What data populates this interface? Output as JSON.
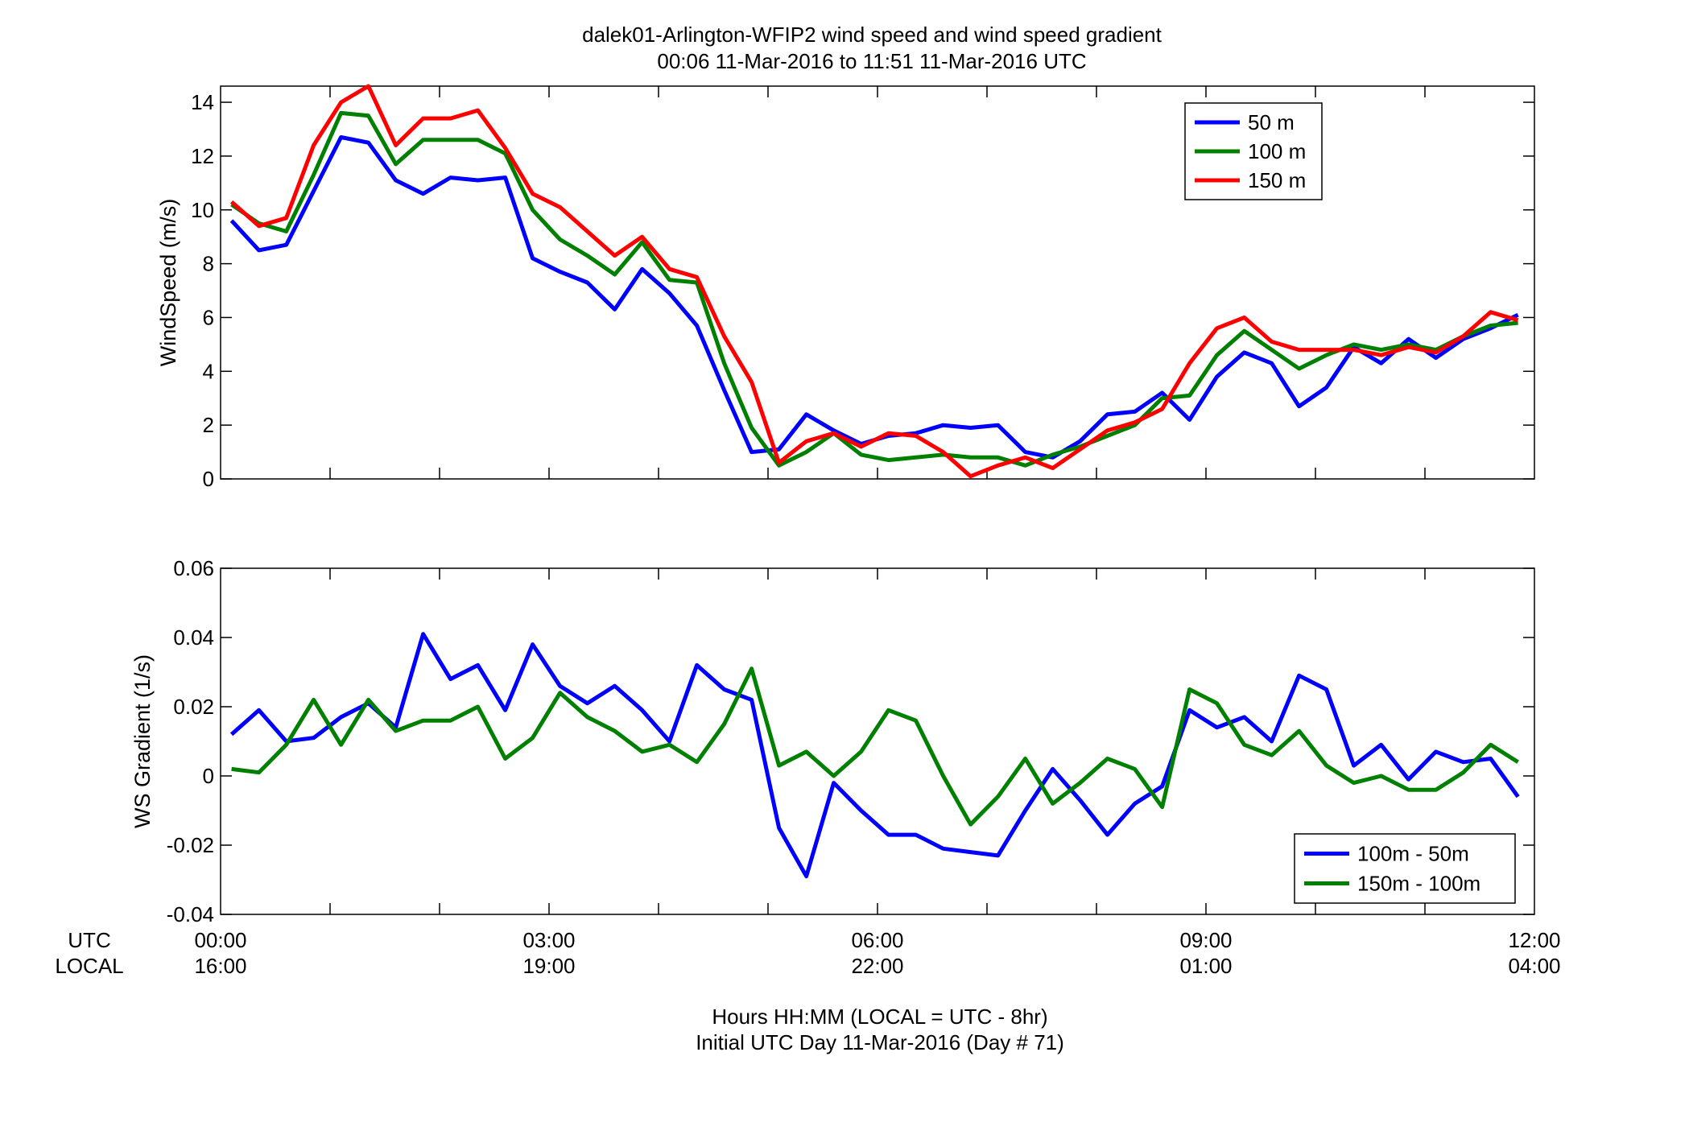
{
  "title_line1": "dalek01-Arlington-WFIP2  wind speed and wind speed gradient",
  "title_line2": "00:06 11-Mar-2016 to 11:51 11-Mar-2016  UTC",
  "row_labels": {
    "utc": "UTC",
    "local": "LOCAL"
  },
  "xlabel_line1": "Hours HH:MM  (LOCAL = UTC - 8hr)",
  "xlabel_line2": "Initial UTC Day 11-Mar-2016 (Day # 71)",
  "x_ticks": [
    {
      "hours": 0,
      "utc": "00:00",
      "local": "16:00"
    },
    {
      "hours": 3,
      "utc": "03:00",
      "local": "19:00"
    },
    {
      "hours": 6,
      "utc": "06:00",
      "local": "22:00"
    },
    {
      "hours": 9,
      "utc": "09:00",
      "local": "01:00"
    },
    {
      "hours": 12,
      "utc": "12:00",
      "local": "04:00"
    }
  ],
  "chart_data": [
    {
      "type": "line",
      "ylabel": "WindSpeed (m/s)",
      "xlim": [
        0,
        12
      ],
      "ylim": [
        0,
        14.6
      ],
      "yticks": [
        0,
        2,
        4,
        6,
        8,
        10,
        12,
        14
      ],
      "ytick_labels": [
        "0",
        "2",
        "4",
        "6",
        "8",
        "10",
        "12",
        "14"
      ],
      "grid": false,
      "legend_position": "top-right",
      "x_hours": [
        0.1,
        0.35,
        0.6,
        0.85,
        1.1,
        1.35,
        1.6,
        1.85,
        2.1,
        2.35,
        2.6,
        2.85,
        3.1,
        3.35,
        3.6,
        3.85,
        4.1,
        4.35,
        4.6,
        4.85,
        5.1,
        5.35,
        5.6,
        5.85,
        6.1,
        6.35,
        6.6,
        6.85,
        7.1,
        7.35,
        7.6,
        7.85,
        8.1,
        8.35,
        8.6,
        8.85,
        9.1,
        9.35,
        9.6,
        9.85,
        10.1,
        10.35,
        10.6,
        10.85,
        11.1,
        11.35,
        11.6,
        11.85
      ],
      "series": [
        {
          "name": "50 m",
          "color": "#0000ff",
          "values": [
            9.6,
            8.5,
            8.7,
            10.7,
            12.7,
            12.5,
            11.1,
            10.6,
            11.2,
            11.1,
            11.2,
            8.2,
            7.7,
            7.3,
            6.3,
            7.8,
            6.9,
            5.7,
            3.3,
            1.0,
            1.1,
            2.4,
            1.8,
            1.3,
            1.6,
            1.7,
            2.0,
            1.9,
            2.0,
            1.0,
            0.8,
            1.4,
            2.4,
            2.5,
            3.2,
            2.2,
            3.8,
            4.7,
            4.3,
            2.7,
            3.4,
            4.9,
            4.3,
            5.2,
            4.5,
            5.2,
            5.6,
            6.1
          ]
        },
        {
          "name": "100 m",
          "color": "#008000",
          "values": [
            10.2,
            9.5,
            9.2,
            11.3,
            13.6,
            13.5,
            11.7,
            12.6,
            12.6,
            12.6,
            12.1,
            10.0,
            8.9,
            8.3,
            7.6,
            8.8,
            7.4,
            7.3,
            4.3,
            1.9,
            0.5,
            1.0,
            1.7,
            0.9,
            0.7,
            0.8,
            0.9,
            0.8,
            0.8,
            0.5,
            0.9,
            1.2,
            1.6,
            2.0,
            3.0,
            3.1,
            4.6,
            5.5,
            4.8,
            4.1,
            4.6,
            5.0,
            4.8,
            5.0,
            4.8,
            5.3,
            5.7,
            5.8
          ]
        },
        {
          "name": "150 m",
          "color": "#ff0000",
          "values": [
            10.3,
            9.4,
            9.7,
            12.4,
            14.0,
            14.6,
            12.4,
            13.4,
            13.4,
            13.7,
            12.3,
            10.6,
            10.1,
            9.2,
            8.3,
            9.0,
            7.8,
            7.5,
            5.3,
            3.6,
            0.6,
            1.4,
            1.7,
            1.2,
            1.7,
            1.6,
            1.0,
            0.1,
            0.5,
            0.8,
            0.4,
            1.1,
            1.8,
            2.1,
            2.6,
            4.3,
            5.6,
            6.0,
            5.1,
            4.8,
            4.8,
            4.8,
            4.6,
            4.9,
            4.7,
            5.3,
            6.2,
            5.9
          ]
        }
      ]
    },
    {
      "type": "line",
      "ylabel": "WS Gradient (1/s)",
      "xlim": [
        0,
        12
      ],
      "ylim": [
        -0.04,
        0.06
      ],
      "yticks": [
        -0.04,
        -0.02,
        0,
        0.02,
        0.04,
        0.06
      ],
      "ytick_labels": [
        "-0.04",
        "-0.02",
        "0",
        "0.02",
        "0.04",
        "0.06"
      ],
      "grid": false,
      "legend_position": "bottom-right",
      "x_hours": [
        0.1,
        0.35,
        0.6,
        0.85,
        1.1,
        1.35,
        1.6,
        1.85,
        2.1,
        2.35,
        2.6,
        2.85,
        3.1,
        3.35,
        3.6,
        3.85,
        4.1,
        4.35,
        4.6,
        4.85,
        5.1,
        5.35,
        5.6,
        5.85,
        6.1,
        6.35,
        6.6,
        6.85,
        7.1,
        7.35,
        7.6,
        7.85,
        8.1,
        8.35,
        8.6,
        8.85,
        9.1,
        9.35,
        9.6,
        9.85,
        10.1,
        10.35,
        10.6,
        10.85,
        11.1,
        11.35,
        11.6,
        11.85
      ],
      "series": [
        {
          "name": "100m - 50m",
          "color": "#0000ff",
          "values": [
            0.012,
            0.019,
            0.01,
            0.011,
            0.017,
            0.021,
            0.014,
            0.041,
            0.028,
            0.032,
            0.019,
            0.038,
            0.026,
            0.021,
            0.026,
            0.019,
            0.01,
            0.032,
            0.025,
            0.022,
            -0.015,
            -0.029,
            -0.002,
            -0.01,
            -0.017,
            -0.017,
            -0.021,
            -0.022,
            -0.023,
            -0.01,
            0.002,
            -0.007,
            -0.017,
            -0.008,
            -0.003,
            0.019,
            0.014,
            0.017,
            0.01,
            0.029,
            0.025,
            0.003,
            0.009,
            -0.001,
            0.007,
            0.004,
            0.005,
            -0.006
          ]
        },
        {
          "name": "150m - 100m",
          "color": "#008000",
          "values": [
            0.002,
            0.001,
            0.009,
            0.022,
            0.009,
            0.022,
            0.013,
            0.016,
            0.016,
            0.02,
            0.005,
            0.011,
            0.024,
            0.017,
            0.013,
            0.007,
            0.009,
            0.004,
            0.015,
            0.031,
            0.003,
            0.007,
            0.0,
            0.007,
            0.019,
            0.016,
            0.0,
            -0.014,
            -0.006,
            0.005,
            -0.008,
            -0.002,
            0.005,
            0.002,
            -0.009,
            0.025,
            0.021,
            0.009,
            0.006,
            0.013,
            0.003,
            -0.002,
            0.0,
            -0.004,
            -0.004,
            0.001,
            0.009,
            0.004
          ]
        }
      ]
    }
  ]
}
